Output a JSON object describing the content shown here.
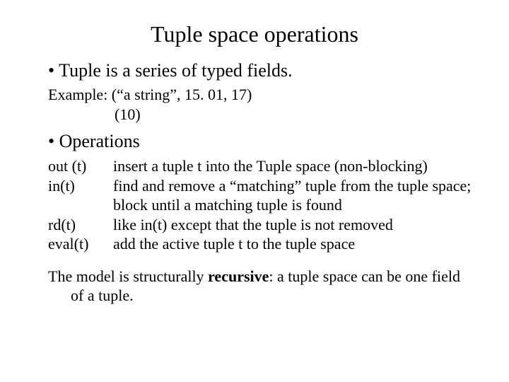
{
  "title": "Tuple space operations",
  "bullet1": "Tuple is a series of typed fields.",
  "example_label": "Example: (“a string”, 15. 01, 17)",
  "example_line2": "(10)",
  "bullet2": "Operations",
  "operations": [
    {
      "label": "out (t)",
      "desc": "insert a tuple t into the Tuple space (non-blocking)"
    },
    {
      "label": "in(t)",
      "desc": "find and remove a “matching” tuple from the tuple space; block until a matching tuple is found"
    },
    {
      "label": "rd(t)",
      "desc": "like in(t) except that the tuple is not removed"
    },
    {
      "label": "eval(t)",
      "desc": "add the active tuple t to the tuple space"
    }
  ],
  "closing_pre": "The model is structurally ",
  "closing_bold": "recursive",
  "closing_post": ": a tuple space can be one field of a tuple.",
  "colors": {
    "background": "#ffffff",
    "text": "#000000"
  },
  "typography": {
    "title_fontsize": 32,
    "bullet_fontsize": 26,
    "body_fontsize": 22,
    "font_family": "Times New Roman"
  }
}
